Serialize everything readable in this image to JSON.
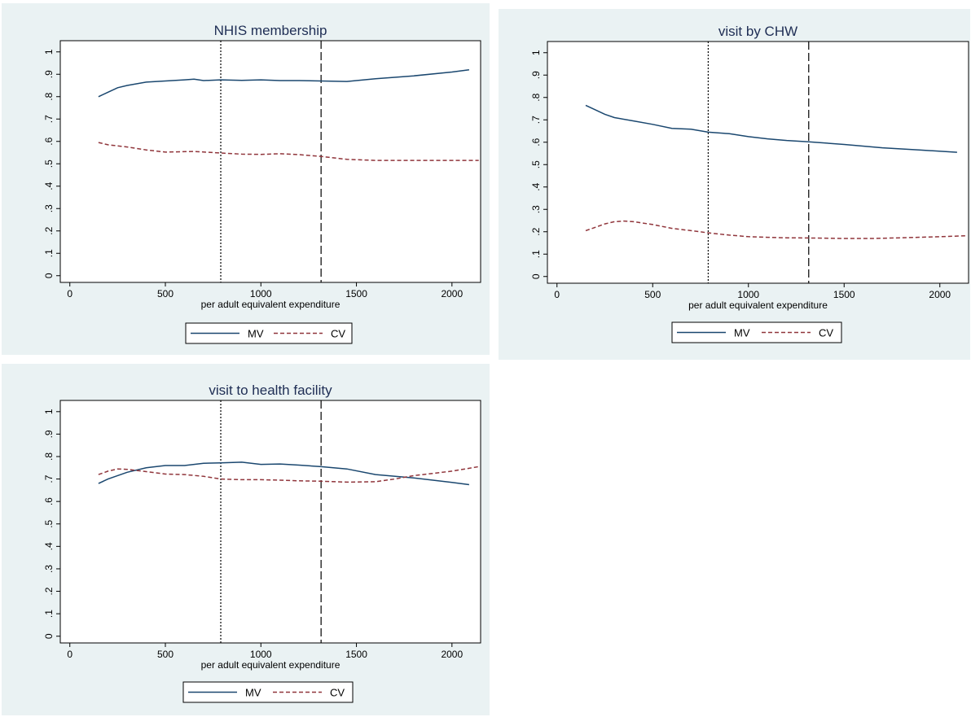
{
  "colors": {
    "mv": "#1a476f",
    "cv": "#90353b",
    "panel_bg": "#eaf2f3",
    "plot_bg": "#ffffff"
  },
  "chart_data": [
    {
      "type": "line",
      "title": "NHIS membership",
      "xlabel": "per adult equivalent expenditure",
      "ylabel": "",
      "xlim": [
        -50,
        2150
      ],
      "ylim": [
        -0.03,
        1.05
      ],
      "x_ticks": [
        0,
        500,
        1000,
        1500,
        2000
      ],
      "y_ticks": [
        0,
        0.1,
        0.2,
        0.3,
        0.4,
        0.5,
        0.6,
        0.7,
        0.8,
        0.9,
        1
      ],
      "y_tick_labels": [
        "0",
        ".1",
        ".2",
        ".3",
        ".4",
        ".5",
        ".6",
        ".7",
        ".8",
        ".9",
        "1"
      ],
      "vlines": [
        {
          "x": 790,
          "style": "dotted"
        },
        {
          "x": 1315,
          "style": "dashed"
        }
      ],
      "legend": {
        "position": "bottom",
        "entries": [
          "MV",
          "CV"
        ]
      },
      "series": [
        {
          "name": "MV",
          "color": "#1a476f",
          "dash": "solid",
          "x": [
            150,
            200,
            250,
            300,
            400,
            500,
            600,
            650,
            700,
            790,
            900,
            1000,
            1100,
            1200,
            1315,
            1450,
            1600,
            1800,
            2000,
            2090
          ],
          "y": [
            0.8,
            0.82,
            0.84,
            0.85,
            0.865,
            0.87,
            0.875,
            0.878,
            0.872,
            0.875,
            0.873,
            0.875,
            0.872,
            0.872,
            0.87,
            0.868,
            0.88,
            0.893,
            0.91,
            0.92
          ]
        },
        {
          "name": "CV",
          "color": "#90353b",
          "dash": "dashed",
          "x": [
            150,
            200,
            300,
            400,
            500,
            650,
            790,
            900,
            1000,
            1100,
            1200,
            1315,
            1450,
            1600,
            1800,
            2000,
            2140
          ],
          "y": [
            0.595,
            0.585,
            0.575,
            0.562,
            0.552,
            0.555,
            0.548,
            0.543,
            0.542,
            0.545,
            0.541,
            0.533,
            0.52,
            0.515,
            0.515,
            0.515,
            0.515
          ]
        }
      ]
    },
    {
      "type": "line",
      "title": "visit by CHW",
      "xlabel": "per adult equivalent expenditure",
      "ylabel": "",
      "xlim": [
        -50,
        2150
      ],
      "ylim": [
        -0.03,
        1.05
      ],
      "x_ticks": [
        0,
        500,
        1000,
        1500,
        2000
      ],
      "y_ticks": [
        0,
        0.1,
        0.2,
        0.3,
        0.4,
        0.5,
        0.6,
        0.7,
        0.8,
        0.9,
        1
      ],
      "y_tick_labels": [
        "0",
        ".1",
        ".2",
        ".3",
        ".4",
        ".5",
        ".6",
        ".7",
        ".8",
        ".9",
        "1"
      ],
      "vlines": [
        {
          "x": 790,
          "style": "dotted"
        },
        {
          "x": 1315,
          "style": "dashed"
        }
      ],
      "legend": {
        "position": "bottom",
        "entries": [
          "MV",
          "CV"
        ]
      },
      "series": [
        {
          "name": "MV",
          "color": "#1a476f",
          "dash": "solid",
          "x": [
            150,
            200,
            250,
            300,
            400,
            500,
            600,
            700,
            790,
            900,
            1000,
            1100,
            1200,
            1315,
            1500,
            1700,
            1900,
            2090
          ],
          "y": [
            0.765,
            0.745,
            0.725,
            0.71,
            0.695,
            0.68,
            0.662,
            0.658,
            0.645,
            0.638,
            0.625,
            0.615,
            0.608,
            0.602,
            0.59,
            0.575,
            0.565,
            0.555
          ]
        },
        {
          "name": "CV",
          "color": "#90353b",
          "dash": "dashed",
          "x": [
            150,
            200,
            250,
            300,
            350,
            400,
            500,
            600,
            700,
            790,
            900,
            1000,
            1100,
            1200,
            1315,
            1500,
            1650,
            1800,
            2000,
            2140
          ],
          "y": [
            0.205,
            0.22,
            0.235,
            0.245,
            0.248,
            0.245,
            0.232,
            0.215,
            0.205,
            0.195,
            0.185,
            0.178,
            0.175,
            0.173,
            0.172,
            0.17,
            0.17,
            0.173,
            0.178,
            0.182
          ]
        }
      ]
    },
    {
      "type": "line",
      "title": "visit to health facility",
      "xlabel": "per adult equivalent expenditure",
      "ylabel": "",
      "xlim": [
        -50,
        2150
      ],
      "ylim": [
        -0.03,
        1.05
      ],
      "x_ticks": [
        0,
        500,
        1000,
        1500,
        2000
      ],
      "y_ticks": [
        0,
        0.1,
        0.2,
        0.3,
        0.4,
        0.5,
        0.6,
        0.7,
        0.8,
        0.9,
        1
      ],
      "y_tick_labels": [
        "0",
        ".1",
        ".2",
        ".3",
        ".4",
        ".5",
        ".6",
        ".7",
        ".8",
        ".9",
        "1"
      ],
      "vlines": [
        {
          "x": 790,
          "style": "dotted"
        },
        {
          "x": 1315,
          "style": "dashed"
        }
      ],
      "legend": {
        "position": "bottom",
        "entries": [
          "MV",
          "CV"
        ]
      },
      "series": [
        {
          "name": "MV",
          "color": "#1a476f",
          "dash": "solid",
          "x": [
            150,
            200,
            300,
            400,
            500,
            600,
            700,
            790,
            900,
            1000,
            1100,
            1200,
            1315,
            1450,
            1600,
            1800,
            2000,
            2090
          ],
          "y": [
            0.68,
            0.7,
            0.73,
            0.75,
            0.76,
            0.76,
            0.77,
            0.772,
            0.775,
            0.765,
            0.767,
            0.762,
            0.755,
            0.745,
            0.72,
            0.705,
            0.685,
            0.675
          ]
        },
        {
          "name": "CV",
          "color": "#90353b",
          "dash": "dashed",
          "x": [
            150,
            200,
            250,
            300,
            400,
            500,
            600,
            700,
            790,
            900,
            1000,
            1100,
            1200,
            1315,
            1450,
            1600,
            1700,
            1800,
            1900,
            2000,
            2140
          ],
          "y": [
            0.72,
            0.735,
            0.745,
            0.743,
            0.733,
            0.722,
            0.72,
            0.712,
            0.7,
            0.697,
            0.697,
            0.695,
            0.692,
            0.69,
            0.686,
            0.688,
            0.7,
            0.715,
            0.725,
            0.735,
            0.755
          ]
        }
      ]
    }
  ]
}
